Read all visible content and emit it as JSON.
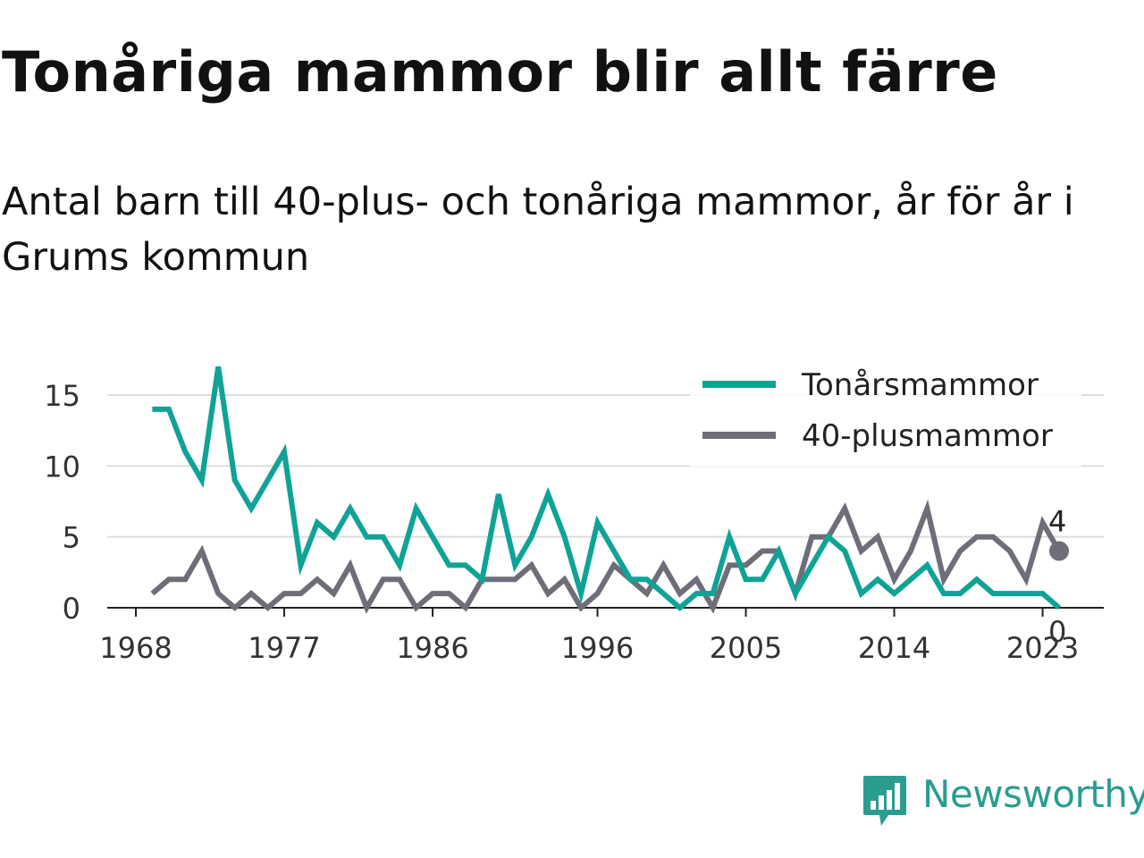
{
  "title": "Tonåriga mammor blir allt färre",
  "subtitle": "Antal barn till 40-plus- och tonåriga mammor, år för år i Grums kommun",
  "brand": {
    "name": "Newsworthy",
    "icon": "chart-speech-bubble-icon",
    "color": "#2a9d8f"
  },
  "chart_data": {
    "type": "line",
    "x": [
      1969,
      1970,
      1971,
      1972,
      1973,
      1974,
      1975,
      1976,
      1977,
      1978,
      1979,
      1980,
      1981,
      1982,
      1983,
      1984,
      1985,
      1986,
      1987,
      1988,
      1989,
      1990,
      1991,
      1992,
      1993,
      1994,
      1995,
      1996,
      1997,
      1998,
      1999,
      2000,
      2001,
      2002,
      2003,
      2004,
      2005,
      2006,
      2007,
      2008,
      2009,
      2010,
      2011,
      2012,
      2013,
      2014,
      2015,
      2016,
      2017,
      2018,
      2019,
      2020,
      2021,
      2022,
      2023,
      2024
    ],
    "series": [
      {
        "name": "Tonårsmammor",
        "color": "#0fa396",
        "values": [
          14,
          14,
          11,
          9,
          17,
          9,
          7,
          9,
          11,
          3,
          6,
          5,
          7,
          5,
          5,
          3,
          7,
          5,
          3,
          3,
          2,
          8,
          3,
          5,
          8,
          5,
          1,
          6,
          4,
          2,
          2,
          1,
          0,
          1,
          1,
          5,
          2,
          2,
          4,
          1,
          3,
          5,
          4,
          1,
          2,
          1,
          2,
          3,
          1,
          1,
          2,
          1,
          1,
          1,
          1,
          0
        ]
      },
      {
        "name": "40-plusmammor",
        "color": "#6e6e78",
        "values": [
          1,
          2,
          2,
          4,
          1,
          0,
          1,
          0,
          1,
          1,
          2,
          1,
          3,
          0,
          2,
          2,
          0,
          1,
          1,
          0,
          2,
          2,
          2,
          3,
          1,
          2,
          0,
          1,
          3,
          2,
          1,
          3,
          1,
          2,
          0,
          3,
          3,
          4,
          4,
          1,
          5,
          5,
          7,
          4,
          5,
          2,
          4,
          7,
          2,
          4,
          5,
          5,
          4,
          2,
          6,
          4
        ]
      }
    ],
    "xticks": [
      1968,
      1977,
      1986,
      1996,
      2005,
      2014,
      2023
    ],
    "yticks": [
      0,
      5,
      10,
      15
    ],
    "xlim": [
      1968,
      2024
    ],
    "ylim": [
      0,
      17
    ],
    "end_labels": [
      "0",
      "4"
    ],
    "grid": "horizontal",
    "legend_position": "top-right"
  }
}
